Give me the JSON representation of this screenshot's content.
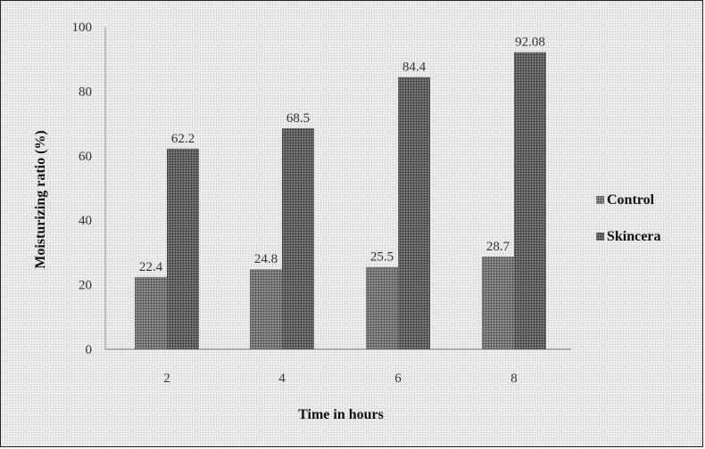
{
  "chart_data": {
    "type": "bar",
    "title": "",
    "xlabel": "Time in hours",
    "ylabel": "Moisturizing ratio (%)",
    "categories": [
      "2",
      "4",
      "6",
      "8"
    ],
    "ylim": [
      0,
      100
    ],
    "yticks": [
      0,
      20,
      40,
      60,
      80,
      100
    ],
    "grid": false,
    "legend_position": "right",
    "series": [
      {
        "name": "Control",
        "values": [
          22.4,
          24.8,
          25.5,
          28.7
        ],
        "labels": [
          "22.4",
          "24.8",
          "25.5",
          "28.7"
        ],
        "color": "#6a6a6a"
      },
      {
        "name": "Skincera",
        "values": [
          62.2,
          68.5,
          84.4,
          92.08
        ],
        "labels": [
          "62.2",
          "68.5",
          "84.4",
          "92.08"
        ],
        "color": "#5a5a5a"
      }
    ]
  }
}
